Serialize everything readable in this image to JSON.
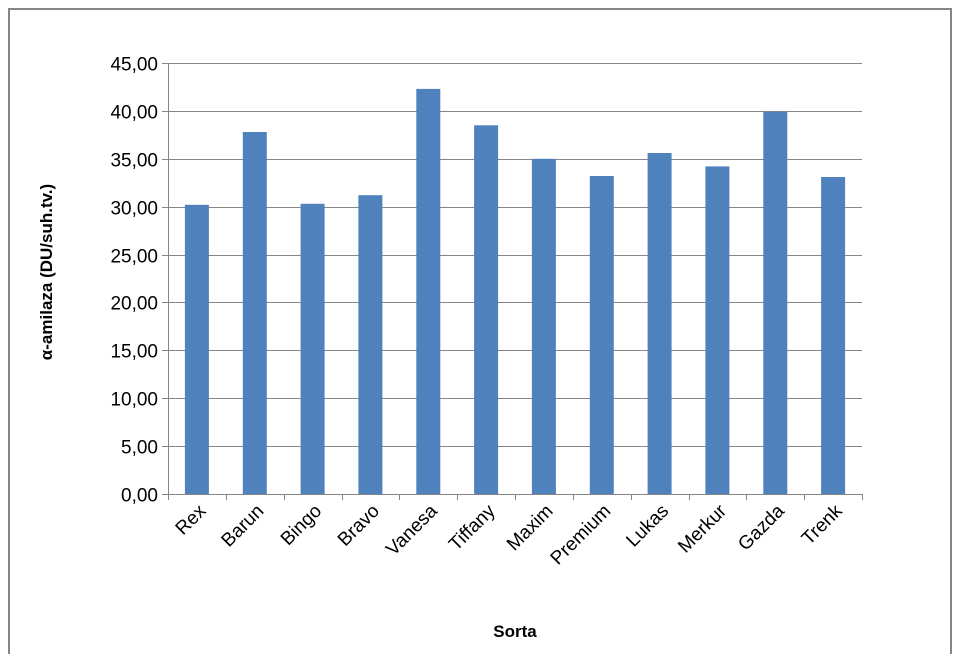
{
  "chart_data": {
    "type": "bar",
    "title": "",
    "xlabel": "Sorta",
    "ylabel": "α-amilaza  (DU/suh.tv.)",
    "categories": [
      "Rex",
      "Barun",
      "Bingo",
      "Bravo",
      "Vanesa",
      "Tiffany",
      "Maxim",
      "Premium",
      "Lukas",
      "Merkur",
      "Gazda",
      "Trenk"
    ],
    "values": [
      30.2,
      37.8,
      30.3,
      31.2,
      42.3,
      38.5,
      35.0,
      33.2,
      35.6,
      34.2,
      39.9,
      33.1
    ],
    "ylim": [
      0,
      45
    ],
    "yticks": [
      0,
      5,
      10,
      15,
      20,
      25,
      30,
      35,
      40,
      45
    ],
    "ytick_labels": [
      "0,00",
      "5,00",
      "10,00",
      "15,00",
      "20,00",
      "25,00",
      "30,00",
      "35,00",
      "40,00",
      "45,00"
    ],
    "grid": true,
    "legend": "none",
    "colors": {
      "bar": "#4f81bd",
      "grid": "#868686",
      "axis": "#868686"
    }
  }
}
